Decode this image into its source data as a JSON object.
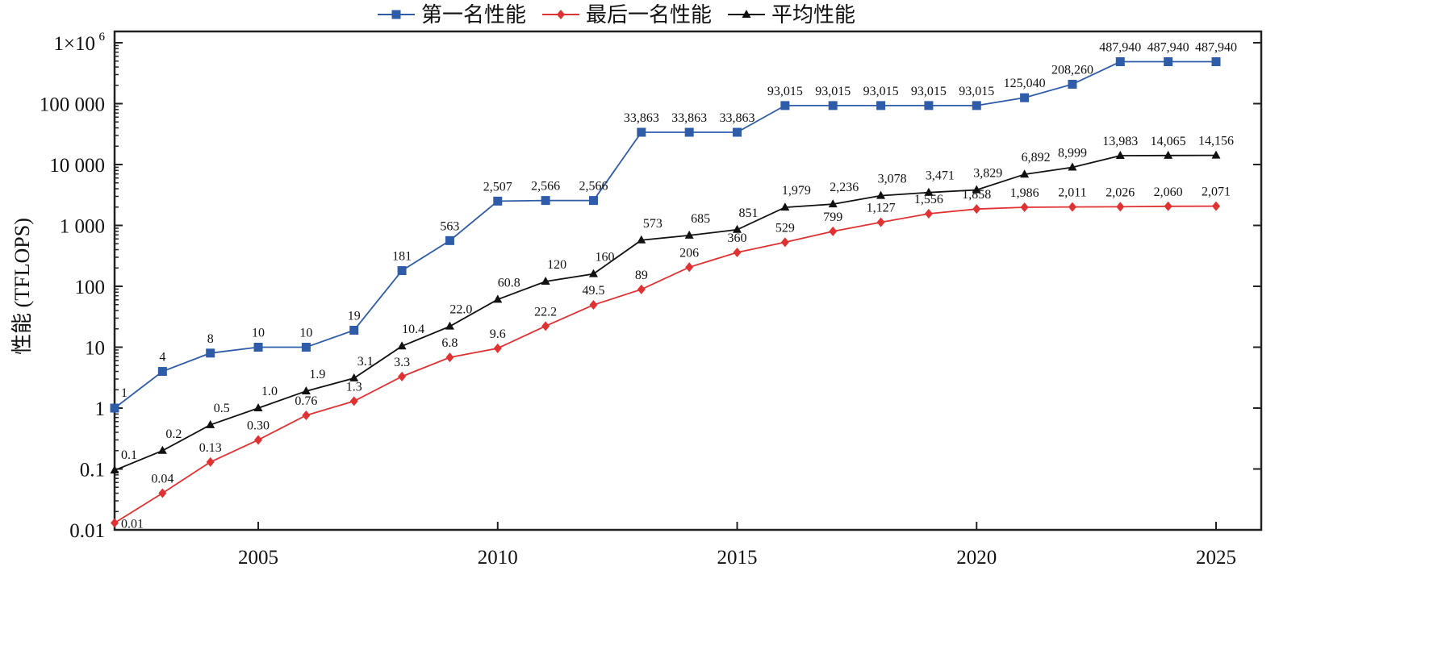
{
  "chart_data": {
    "type": "line",
    "title": "",
    "xlabel": "",
    "ylabel": "性能 (TFLOPS)",
    "yscale": "log",
    "ylim": [
      0.01,
      1000000
    ],
    "xlim": [
      2002,
      2025
    ],
    "x": [
      2002,
      2003,
      2004,
      2005,
      2006,
      2007,
      2008,
      2009,
      2010,
      2011,
      2012,
      2013,
      2014,
      2015,
      2016,
      2017,
      2018,
      2019,
      2020,
      2021,
      2022,
      2023,
      2024,
      2025
    ],
    "x_ticks": [
      2005,
      2010,
      2015,
      2020,
      2025
    ],
    "x_tick_labels": [
      "2005",
      "2010",
      "2015",
      "2020",
      "2025"
    ],
    "y_ticks": [
      0.01,
      0.1,
      1,
      10,
      100,
      1000,
      10000,
      100000,
      1000000
    ],
    "y_tick_labels": [
      "0.01",
      "0.1",
      "1",
      "10",
      "100",
      "1 000",
      "10 000",
      "100 000",
      "1×10"
    ],
    "y_top_exponent": "6",
    "legend_position": "top-center",
    "grid": false,
    "series": [
      {
        "name": "第一名性能",
        "color": "#2f5ca8",
        "marker": "square",
        "values": [
          1,
          4,
          8,
          10,
          10,
          19,
          181,
          563,
          2507,
          2566,
          2566,
          33863,
          33863,
          33863,
          93015,
          93015,
          93015,
          93015,
          93015,
          125040,
          208260,
          487940,
          487940,
          487940
        ],
        "labels": [
          "1",
          "4",
          "8",
          "10",
          "10",
          "19",
          "181",
          "563",
          "2,507",
          "2,566",
          "2,566",
          "33,863",
          "33,863",
          "33,863",
          "93,015",
          "93,015",
          "93,015",
          "93,015",
          "93,015",
          "125,040",
          "208,260",
          "487,940",
          "487,940",
          "487,940"
        ]
      },
      {
        "name": "最后一名性能",
        "color": "#e03232",
        "marker": "diamond",
        "values": [
          0.013,
          0.04,
          0.13,
          0.3,
          0.76,
          1.3,
          3.3,
          6.8,
          9.6,
          22.2,
          49.5,
          89,
          206,
          360,
          529,
          799,
          1127,
          1556,
          1858,
          1986,
          2011,
          2026,
          2060,
          2071
        ],
        "labels": [
          "0.01",
          "0.04",
          "0.13",
          "0.30",
          "0.76",
          "1.3",
          "3.3",
          "6.8",
          "9.6",
          "22.2",
          "49.5",
          "89",
          "206",
          "360",
          "529",
          "799",
          "1,127",
          "1,556",
          "1,858",
          "1,986",
          "2,011",
          "2,026",
          "2,060",
          "2,071"
        ]
      },
      {
        "name": "平均性能",
        "color": "#111111",
        "marker": "triangle",
        "values": [
          0.095,
          0.2,
          0.53,
          1.0,
          1.9,
          3.1,
          10.4,
          22.0,
          60.8,
          120,
          160,
          573,
          685,
          851,
          1979,
          2236,
          3078,
          3471,
          3829,
          6892,
          8999,
          13983,
          14065,
          14156
        ],
        "labels": [
          "0.1",
          "0.2",
          "0.5",
          "1.0",
          "1.9",
          "3.1",
          "10.4",
          "22.0",
          "60.8",
          "120",
          "160",
          "573",
          "685",
          "851",
          "1,979",
          "2,236",
          "3,078",
          "3,471",
          "3,829",
          "6,892",
          "8,999",
          "13,983",
          "14,065",
          "14,156"
        ]
      }
    ]
  }
}
